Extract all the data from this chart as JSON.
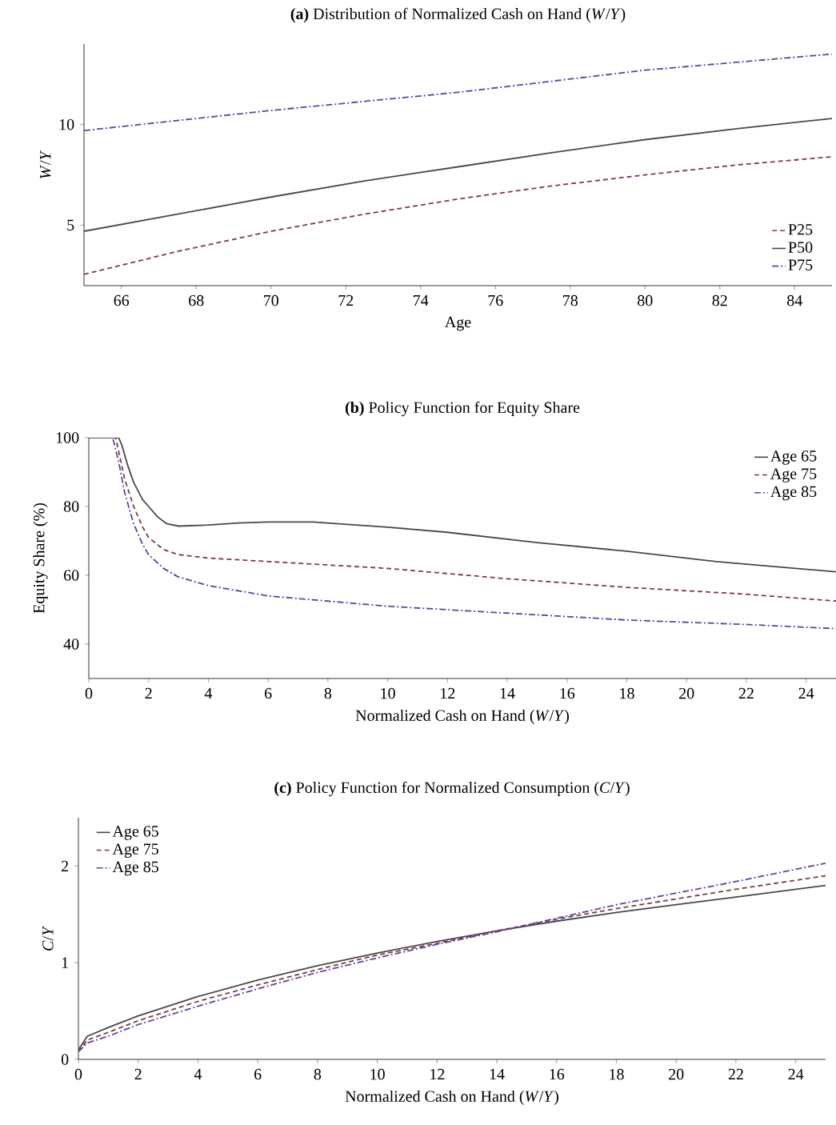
{
  "chart_data": [
    {
      "type": "line",
      "title": "**(a)** Distribution of Normalized Cash on Hand (*W*/*Y*)",
      "xlabel": "Age",
      "ylabel": "*W*/*Y*",
      "xlim": [
        65,
        85
      ],
      "ylim": [
        2,
        14
      ],
      "xticks": [
        66,
        68,
        70,
        72,
        74,
        76,
        78,
        80,
        82,
        84
      ],
      "yticks": [
        5,
        10
      ],
      "legend": "bottom right",
      "series": [
        {
          "name": "P25",
          "color": "#7f3d3d",
          "line_style": "dashed",
          "x": [
            65,
            67.5,
            70,
            72.5,
            75,
            77.5,
            80,
            82.5,
            85
          ],
          "values": [
            2.56,
            3.7,
            4.7,
            5.55,
            6.3,
            6.95,
            7.5,
            8.0,
            8.4
          ]
        },
        {
          "name": "P50",
          "color": "#4a474d",
          "line_style": "solid",
          "x": [
            65,
            67.5,
            70,
            72.5,
            75,
            77.5,
            80,
            82.5,
            85
          ],
          "values": [
            4.7,
            5.55,
            6.4,
            7.2,
            7.9,
            8.6,
            9.25,
            9.8,
            10.3
          ]
        },
        {
          "name": "P75",
          "color": "#5e45a0",
          "line_style": "dashdot",
          "x": [
            65,
            67.5,
            70,
            72.5,
            75,
            77.5,
            80,
            82.5,
            85
          ],
          "values": [
            9.7,
            10.2,
            10.7,
            11.15,
            11.6,
            12.15,
            12.7,
            13.1,
            13.5
          ]
        }
      ]
    },
    {
      "type": "line",
      "title": "**(b)** Policy Function for Equity Share",
      "xlabel": "Normalized Cash on Hand (*W*/*Y*)",
      "ylabel": "Equity Share (%)",
      "xlim": [
        0,
        25
      ],
      "ylim": [
        30,
        100
      ],
      "xticks": [
        0,
        2,
        4,
        6,
        8,
        10,
        12,
        14,
        16,
        18,
        20,
        22,
        24
      ],
      "yticks": [
        40,
        60,
        80,
        100
      ],
      "legend": "top right",
      "series": [
        {
          "name": "Age 65",
          "color": "#4a474d",
          "line_style": "solid",
          "x": [
            0,
            1,
            1.1,
            1.3,
            1.5,
            1.8,
            2,
            2.3,
            2.6,
            3,
            4,
            5,
            6,
            7.5,
            10,
            12,
            15,
            18,
            21,
            25
          ],
          "values": [
            100,
            100,
            98,
            92,
            87,
            82,
            80,
            77,
            75,
            74.3,
            74.6,
            75.2,
            75.5,
            75.5,
            74,
            72.5,
            69.5,
            67,
            64,
            61
          ]
        },
        {
          "name": "Age 75",
          "color": "#7f3d3d",
          "line_style": "dashed",
          "x": [
            0,
            0.9,
            1,
            1.2,
            1.5,
            1.8,
            2,
            2.5,
            3,
            4,
            6,
            8,
            10,
            14,
            18,
            22,
            25
          ],
          "values": [
            100,
            100,
            96,
            88,
            80,
            74,
            71,
            67.5,
            66,
            65,
            64,
            63,
            62,
            59,
            56.5,
            54.5,
            52.5
          ]
        },
        {
          "name": "Age 85",
          "color": "#5e45a0",
          "line_style": "dashdot",
          "x": [
            0,
            0.8,
            1,
            1.2,
            1.5,
            1.8,
            2,
            2.5,
            3,
            4,
            6,
            8,
            10,
            14,
            18,
            22,
            25
          ],
          "values": [
            100,
            100,
            93,
            84,
            75,
            69,
            66,
            62,
            59.5,
            57,
            54,
            52.5,
            51,
            49,
            47,
            45.7,
            44.5
          ]
        }
      ]
    },
    {
      "type": "line",
      "title": "**(c)** Policy Function for Normalized Consumption (*C*/*Y*)",
      "xlabel": "Normalized Cash on Hand (*W*/*Y*)",
      "ylabel": "*C*/*Y*",
      "xlim": [
        0,
        25
      ],
      "ylim": [
        0,
        2.5
      ],
      "xticks": [
        0,
        2,
        4,
        6,
        8,
        10,
        12,
        14,
        16,
        18,
        20,
        22,
        24
      ],
      "yticks": [
        0,
        1,
        2
      ],
      "legend": "top left",
      "series": [
        {
          "name": "Age 65",
          "color": "#4a474d",
          "line_style": "solid",
          "x": [
            0,
            0.3,
            1,
            2,
            4,
            6,
            8,
            10,
            12,
            14,
            16,
            18,
            20,
            22,
            25
          ],
          "values": [
            0.1,
            0.24,
            0.33,
            0.45,
            0.65,
            0.82,
            0.97,
            1.1,
            1.22,
            1.33,
            1.43,
            1.52,
            1.6,
            1.68,
            1.8
          ]
        },
        {
          "name": "Age 75",
          "color": "#7f3d3d",
          "line_style": "dashed",
          "x": [
            0,
            0.3,
            1,
            2,
            4,
            6,
            8,
            10,
            12,
            14,
            16,
            18,
            20,
            22,
            25
          ],
          "values": [
            0.08,
            0.2,
            0.28,
            0.4,
            0.6,
            0.77,
            0.93,
            1.08,
            1.2,
            1.33,
            1.45,
            1.56,
            1.66,
            1.76,
            1.9
          ]
        },
        {
          "name": "Age 85",
          "color": "#5e45a0",
          "line_style": "dashdot",
          "x": [
            0,
            0.3,
            1,
            2,
            4,
            6,
            8,
            10,
            12,
            14,
            16,
            18,
            20,
            22,
            25
          ],
          "values": [
            0.08,
            0.17,
            0.24,
            0.36,
            0.55,
            0.73,
            0.9,
            1.05,
            1.19,
            1.32,
            1.46,
            1.6,
            1.72,
            1.84,
            2.03
          ]
        }
      ]
    }
  ]
}
